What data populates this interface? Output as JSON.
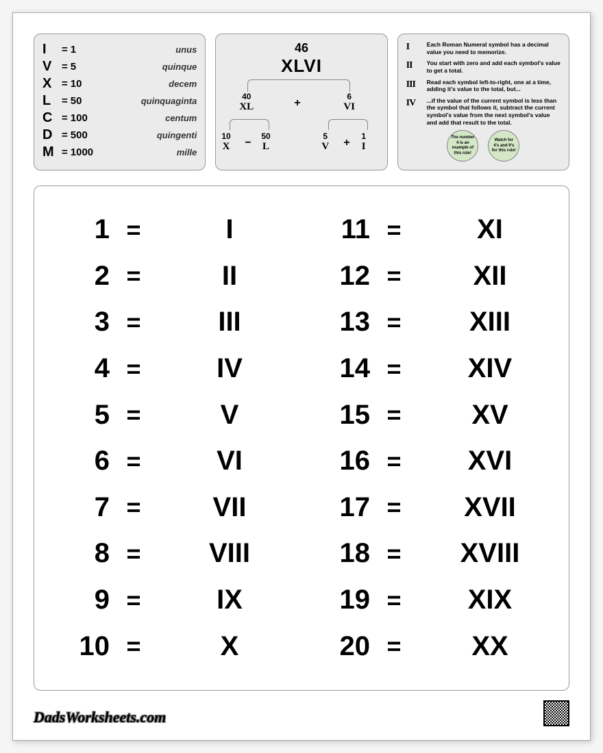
{
  "panel1": {
    "rows": [
      {
        "sym": "I",
        "val": "1",
        "latin": "unus"
      },
      {
        "sym": "V",
        "val": "5",
        "latin": "quinque"
      },
      {
        "sym": "X",
        "val": "10",
        "latin": "decem"
      },
      {
        "sym": "L",
        "val": "50",
        "latin": "quinquaginta"
      },
      {
        "sym": "C",
        "val": "100",
        "latin": "centum"
      },
      {
        "sym": "D",
        "val": "500",
        "latin": "quingenti"
      },
      {
        "sym": "M",
        "val": "1000",
        "latin": "mille"
      }
    ],
    "eq": "="
  },
  "panel2": {
    "top_num": "46",
    "top_roman": "XLVI",
    "mid_left_num": "40",
    "mid_left_rom": "XL",
    "mid_right_num": "6",
    "mid_right_rom": "VI",
    "mid_op": "+",
    "bot_1_num": "10",
    "bot_1_rom": "X",
    "bot_2_num": "50",
    "bot_2_rom": "L",
    "bot_left_op": "−",
    "bot_3_num": "5",
    "bot_3_rom": "V",
    "bot_4_num": "1",
    "bot_4_rom": "I",
    "bot_right_op": "+"
  },
  "panel3": {
    "rules": [
      {
        "icon": "I",
        "text": "Each Roman Numeral symbol has a decimal value you need to memorize."
      },
      {
        "icon": "II",
        "text": "You start with zero and add each symbol's value to get a total."
      },
      {
        "icon": "III",
        "text": "Read each symbol left-to-right, one at a time, adding it's value to the total, but..."
      },
      {
        "icon": "IV",
        "text": "...if the value of the current symbol is less than the symbol that follows it, subtract the current symbol's value from the next symbol's value and add that result to the total."
      }
    ],
    "circle1": "The number 4 is an example of this rule!",
    "circle2": "Watch for 4's and 9's for this rule!"
  },
  "chart": {
    "eq": "=",
    "left": [
      {
        "n": "1",
        "r": "I"
      },
      {
        "n": "2",
        "r": "II"
      },
      {
        "n": "3",
        "r": "III"
      },
      {
        "n": "4",
        "r": "IV"
      },
      {
        "n": "5",
        "r": "V"
      },
      {
        "n": "6",
        "r": "VI"
      },
      {
        "n": "7",
        "r": "VII"
      },
      {
        "n": "8",
        "r": "VIII"
      },
      {
        "n": "9",
        "r": "IX"
      },
      {
        "n": "10",
        "r": "X"
      }
    ],
    "right": [
      {
        "n": "11",
        "r": "XI"
      },
      {
        "n": "12",
        "r": "XII"
      },
      {
        "n": "13",
        "r": "XIII"
      },
      {
        "n": "14",
        "r": "XIV"
      },
      {
        "n": "15",
        "r": "XV"
      },
      {
        "n": "16",
        "r": "XVI"
      },
      {
        "n": "17",
        "r": "XVII"
      },
      {
        "n": "18",
        "r": "XVIII"
      },
      {
        "n": "19",
        "r": "XIX"
      },
      {
        "n": "20",
        "r": "XX"
      }
    ]
  },
  "footer": {
    "brand": "DadsWorksheets.com"
  },
  "colors": {
    "panel_bg": "#ebebeb",
    "panel_border": "#999",
    "page_bg": "#ffffff",
    "circle_bg": "#d4e8c8"
  }
}
